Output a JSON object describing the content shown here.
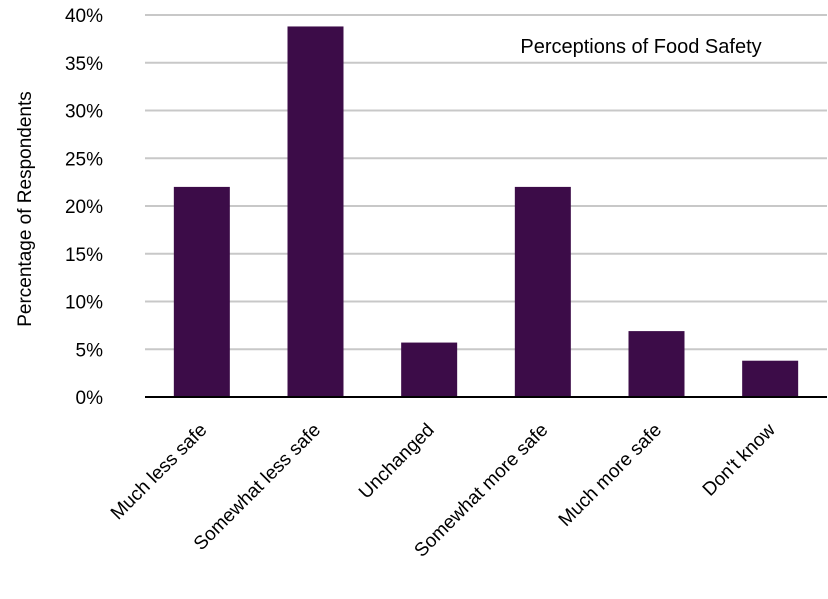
{
  "chart_data": {
    "type": "bar",
    "title": "Perceptions of Food Safety",
    "xlabel": "",
    "ylabel": "Percentage of Respondents",
    "categories": [
      "Much less safe",
      "Somewhat less safe",
      "Unchanged",
      "Somewhat more safe",
      "Much more safe",
      "Don't know"
    ],
    "values": [
      22,
      38.8,
      5.7,
      22,
      6.9,
      3.8
    ],
    "ylim": [
      0,
      40
    ],
    "y_ticks": [
      "0%",
      "5%",
      "10%",
      "15%",
      "20%",
      "25%",
      "30%",
      "35%",
      "40%"
    ],
    "grid": true,
    "legend": "none",
    "bar_color": "#3c0c48",
    "grid_color": "#c8c8c8",
    "axis_color": "#000000"
  }
}
